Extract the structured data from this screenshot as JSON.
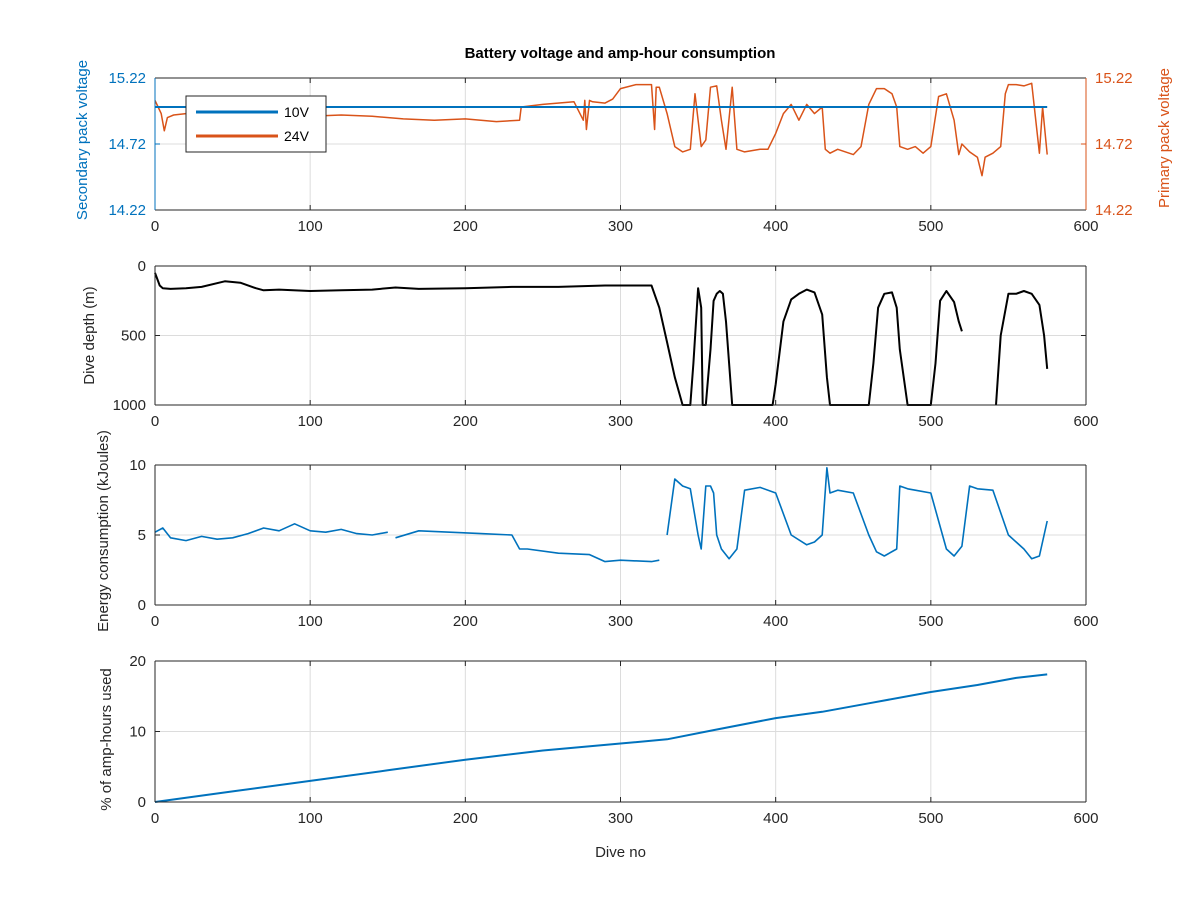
{
  "figure": {
    "title": "Battery voltage and amp-hour consumption"
  },
  "colors": {
    "blue": "#0072BD",
    "orange": "#D95319",
    "black": "#000000",
    "grid": "#dcdcdc",
    "axis": "#262626"
  },
  "chart_data": [
    {
      "type": "line",
      "title": "Battery voltage and amp-hour consumption",
      "xlabel": "",
      "ylabel_left": "Secondary pack voltage",
      "ylabel_right": "Primary pack voltage",
      "xlim": [
        0,
        600
      ],
      "xticks": [
        "0",
        "100",
        "200",
        "300",
        "400",
        "500",
        "600"
      ],
      "ylim": [
        14.22,
        15.22
      ],
      "yticks_left": [
        "14.22",
        "14.72",
        "15.22"
      ],
      "yticks_right": [
        "14.22",
        "14.72",
        "15.22"
      ],
      "grid": true,
      "legend": {
        "placement": "top-left",
        "entries": [
          "10V",
          "24V"
        ]
      },
      "series": [
        {
          "name": "10V",
          "axis": "left",
          "x": [
            0,
            575
          ],
          "y": [
            15.0,
            15.0
          ]
        },
        {
          "name": "24V",
          "axis": "right",
          "x": [
            0,
            2,
            4,
            6,
            8,
            10,
            12,
            20,
            40,
            60,
            80,
            100,
            120,
            140,
            160,
            180,
            200,
            220,
            235,
            236,
            250,
            270,
            276,
            277,
            278,
            280,
            282,
            290,
            295,
            300,
            310,
            320,
            322,
            323,
            325,
            330,
            335,
            340,
            345,
            348,
            352,
            355,
            358,
            362,
            365,
            368,
            372,
            375,
            380,
            390,
            395,
            400,
            405,
            410,
            415,
            420,
            425,
            430,
            432,
            435,
            440,
            450,
            455,
            460,
            465,
            470,
            475,
            478,
            480,
            485,
            490,
            495,
            500,
            505,
            510,
            515,
            518,
            520,
            525,
            530,
            533,
            535,
            540,
            545,
            548,
            550,
            555,
            560,
            565,
            570,
            572,
            575
          ],
          "y": [
            15.05,
            15.0,
            14.95,
            14.82,
            14.92,
            14.93,
            14.94,
            14.95,
            14.96,
            14.94,
            14.95,
            14.93,
            14.94,
            14.93,
            14.91,
            14.9,
            14.91,
            14.89,
            14.9,
            15.0,
            15.02,
            15.04,
            14.9,
            15.05,
            14.83,
            15.05,
            15.04,
            15.03,
            15.06,
            15.14,
            15.17,
            15.17,
            14.83,
            15.15,
            15.15,
            14.95,
            14.7,
            14.66,
            14.68,
            15.1,
            14.7,
            14.75,
            15.15,
            15.16,
            14.9,
            14.68,
            15.15,
            14.68,
            14.66,
            14.68,
            14.68,
            14.8,
            14.95,
            15.02,
            14.9,
            15.02,
            14.95,
            15.0,
            14.68,
            14.65,
            14.68,
            14.64,
            14.7,
            15.02,
            15.14,
            15.14,
            15.1,
            15.0,
            14.7,
            14.68,
            14.7,
            14.65,
            14.7,
            15.08,
            15.1,
            14.9,
            14.64,
            14.72,
            14.66,
            14.62,
            14.48,
            14.62,
            14.65,
            14.7,
            15.1,
            15.17,
            15.17,
            15.16,
            15.18,
            14.65,
            15.0,
            14.64
          ]
        }
      ]
    },
    {
      "type": "line",
      "title": "",
      "xlabel": "",
      "ylabel": "Dive depth (m)",
      "xlim": [
        0,
        600
      ],
      "xticks": [
        "0",
        "100",
        "200",
        "300",
        "400",
        "500",
        "600"
      ],
      "ylim": [
        0,
        1000
      ],
      "y_reversed": true,
      "yticks": [
        "0",
        "500",
        "1000"
      ],
      "grid": true,
      "series": [
        {
          "x": [
            0,
            1,
            3,
            5,
            10,
            20,
            30,
            45,
            55,
            65,
            70,
            80,
            100,
            120,
            140,
            155,
            170,
            200,
            230,
            260,
            290,
            320,
            325,
            330,
            335,
            340,
            345,
            347,
            350,
            352,
            353,
            355,
            358,
            360,
            362,
            364,
            366,
            368,
            370,
            372,
            375,
            390,
            398,
            400,
            405,
            410,
            415,
            420,
            425,
            430,
            433,
            435,
            450,
            460,
            463,
            466,
            470,
            475,
            478,
            480,
            485,
            490,
            495,
            500,
            503,
            506,
            510,
            515,
            518,
            520
          ],
          "y": [
            50,
            80,
            140,
            160,
            165,
            160,
            150,
            110,
            120,
            160,
            175,
            170,
            180,
            175,
            170,
            155,
            165,
            160,
            150,
            150,
            140,
            140,
            300,
            550,
            800,
            1000,
            1000,
            700,
            160,
            300,
            1000,
            1000,
            600,
            250,
            200,
            180,
            200,
            400,
            700,
            1000,
            1000,
            1000,
            1000,
            850,
            400,
            240,
            200,
            170,
            190,
            350,
            800,
            1000,
            1000,
            1000,
            700,
            300,
            200,
            190,
            300,
            600,
            1000,
            1000,
            1000,
            1000,
            700,
            250,
            180,
            260,
            400,
            470
          ]
        },
        {
          "x": [
            542,
            545,
            550,
            555,
            560,
            565,
            570,
            573,
            575
          ],
          "y": [
            1000,
            500,
            200,
            200,
            180,
            200,
            280,
            500,
            740
          ]
        }
      ]
    },
    {
      "type": "line",
      "title": "",
      "xlabel": "",
      "ylabel": "Energy consumption (kJoules)",
      "xlim": [
        0,
        600
      ],
      "xticks": [
        "0",
        "100",
        "200",
        "300",
        "400",
        "500",
        "600"
      ],
      "ylim": [
        0,
        10
      ],
      "yticks": [
        "0",
        "5",
        "10"
      ],
      "grid": true,
      "series": [
        {
          "x": [
            0,
            5,
            10,
            20,
            30,
            40,
            50,
            60,
            70,
            80,
            90,
            100,
            110,
            120,
            130,
            140,
            150
          ],
          "y": [
            5.2,
            5.5,
            4.8,
            4.6,
            4.9,
            4.7,
            4.8,
            5.1,
            5.5,
            5.3,
            5.8,
            5.3,
            5.2,
            5.4,
            5.1,
            5.0,
            5.2
          ]
        },
        {
          "x": [
            155,
            170,
            190,
            210,
            230,
            235,
            240,
            260,
            280,
            290,
            300,
            320,
            325
          ],
          "y": [
            4.8,
            5.3,
            5.2,
            5.1,
            5.0,
            4.0,
            4.0,
            3.7,
            3.6,
            3.1,
            3.2,
            3.1,
            3.2
          ]
        },
        {
          "x": [
            330,
            335,
            340,
            345,
            350,
            352,
            355,
            358,
            360,
            362,
            365,
            370,
            375,
            380,
            390,
            400,
            410,
            420,
            425,
            430,
            433,
            435,
            440,
            450,
            460,
            465,
            470,
            478,
            480,
            485,
            490,
            500,
            510,
            515,
            520,
            525,
            530,
            540,
            550,
            560,
            565,
            570,
            575
          ],
          "y": [
            5.0,
            9.0,
            8.5,
            8.3,
            5.0,
            4.0,
            8.5,
            8.5,
            8.0,
            5.0,
            4.0,
            3.3,
            4.0,
            8.2,
            8.4,
            8.0,
            5.0,
            4.3,
            4.5,
            5.0,
            9.8,
            8.0,
            8.2,
            8.0,
            5.0,
            3.8,
            3.5,
            4.0,
            8.5,
            8.3,
            8.2,
            8.0,
            4.0,
            3.5,
            4.2,
            8.5,
            8.3,
            8.2,
            5.0,
            4.0,
            3.3,
            3.5,
            6.0
          ]
        }
      ]
    },
    {
      "type": "line",
      "title": "",
      "xlabel": "Dive no",
      "ylabel": "% of amp-hours used",
      "xlim": [
        0,
        600
      ],
      "xticks": [
        "0",
        "100",
        "200",
        "300",
        "400",
        "500",
        "600"
      ],
      "ylim": [
        0,
        20
      ],
      "yticks": [
        "0",
        "10",
        "20"
      ],
      "grid": true,
      "series": [
        {
          "x": [
            0,
            50,
            100,
            150,
            200,
            250,
            300,
            330,
            360,
            400,
            430,
            460,
            500,
            530,
            555,
            575
          ],
          "y": [
            0,
            1.5,
            3.0,
            4.5,
            6.0,
            7.3,
            8.3,
            8.9,
            10.2,
            11.9,
            12.8,
            14.0,
            15.6,
            16.6,
            17.6,
            18.1
          ]
        }
      ]
    }
  ]
}
